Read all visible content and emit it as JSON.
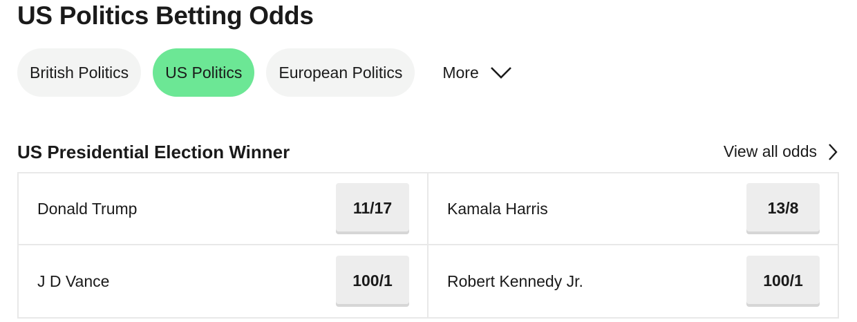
{
  "page_title": "US Politics Betting Odds",
  "tabs": [
    {
      "label": "British Politics",
      "active": false
    },
    {
      "label": "US Politics",
      "active": true
    },
    {
      "label": "European Politics",
      "active": false
    }
  ],
  "more": {
    "label": "More",
    "icon": "chevron-down-icon"
  },
  "market": {
    "title": "US Presidential Election Winner",
    "view_all_label": "View all odds",
    "view_all_icon": "chevron-right-icon",
    "runners": [
      {
        "name": "Donald Trump",
        "odds": "11/17"
      },
      {
        "name": "Kamala Harris",
        "odds": "13/8"
      },
      {
        "name": "J D Vance",
        "odds": "100/1"
      },
      {
        "name": "Robert Kennedy Jr.",
        "odds": "100/1"
      }
    ]
  },
  "colors": {
    "active_tab": "#6ce795",
    "tab_bg": "#f3f4f3",
    "odds_bg": "#ededed",
    "border": "#e8e8e8",
    "text": "#1a1a1a"
  }
}
